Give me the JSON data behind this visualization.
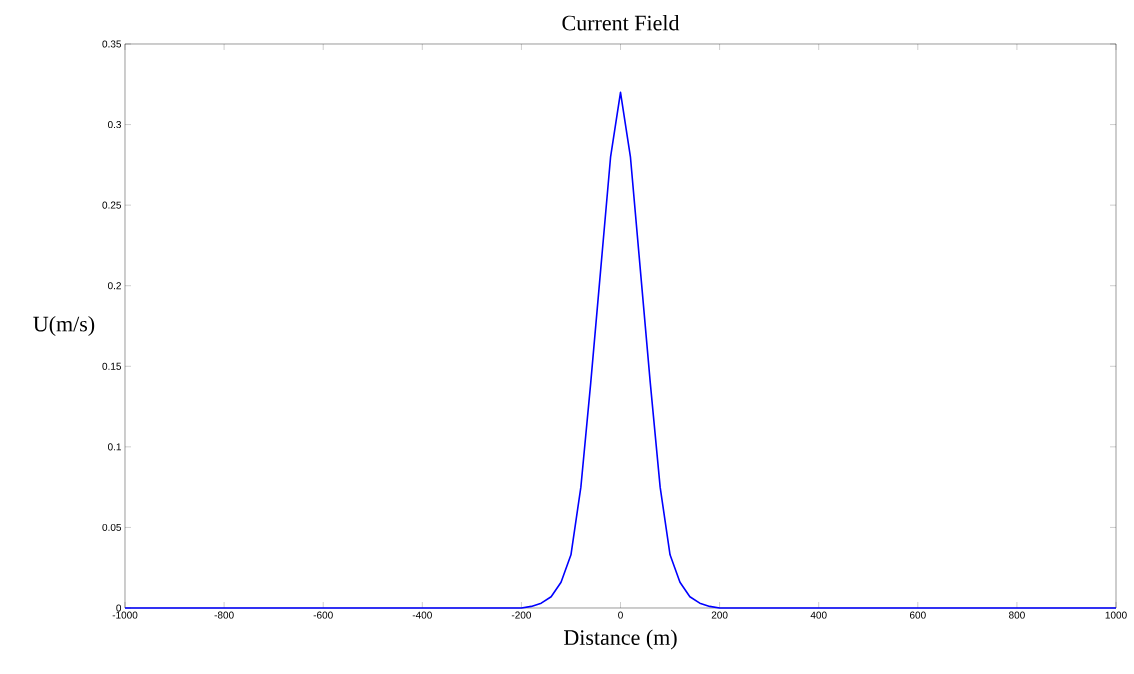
{
  "chart_data": {
    "type": "line",
    "title": "Current Field",
    "xlabel": "Distance (m)",
    "ylabel": "U(m/s)",
    "x": [
      -1000,
      -200,
      -180,
      -160,
      -140,
      -120,
      -100,
      -80,
      -60,
      -40,
      -20,
      0,
      20,
      40,
      60,
      80,
      100,
      120,
      140,
      160,
      180,
      200,
      1000
    ],
    "series": [
      {
        "color": "#0000ff",
        "values": [
          0,
          0,
          0.001,
          0.003,
          0.007,
          0.016,
          0.033,
          0.075,
          0.14,
          0.21,
          0.28,
          0.32,
          0.28,
          0.21,
          0.14,
          0.075,
          0.033,
          0.016,
          0.007,
          0.003,
          0.001,
          0,
          0
        ]
      }
    ],
    "xlim": [
      -1000,
      1000
    ],
    "ylim": [
      0,
      0.35
    ],
    "xticks": [
      -1000,
      -800,
      -600,
      -400,
      -200,
      0,
      200,
      400,
      600,
      800,
      1000
    ],
    "yticks": [
      0,
      0.05,
      0.1,
      0.15,
      0.2,
      0.25,
      0.3,
      0.35
    ],
    "grid": false
  }
}
